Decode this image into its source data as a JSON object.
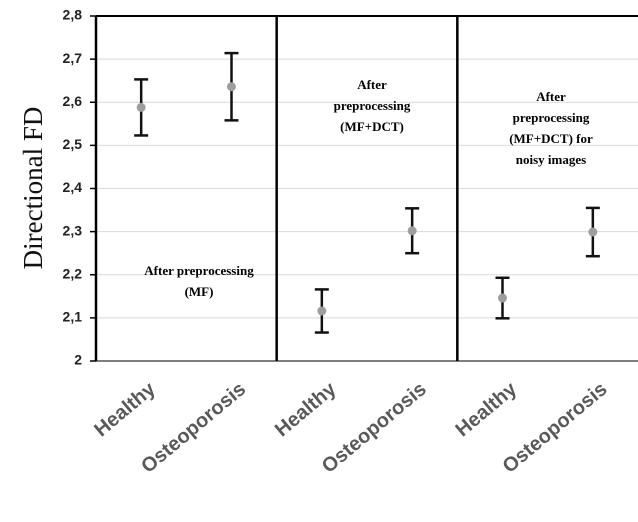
{
  "chart_data": {
    "type": "errorbar",
    "y_label": "Directional FD",
    "ylim": [
      2,
      2.8
    ],
    "yticks": [
      2,
      {
        "value": 2.1,
        "label": "2,1"
      },
      {
        "value": 2.2,
        "label": "2,2"
      },
      {
        "value": 2.3,
        "label": "2,3"
      },
      {
        "value": 2.4,
        "label": "2,4"
      },
      {
        "value": 2.5,
        "label": "2,5"
      },
      {
        "value": 2.6,
        "label": "2,6"
      },
      {
        "value": 2.7,
        "label": "2,7"
      },
      {
        "value": 2.8,
        "label": "2,8"
      }
    ],
    "grid": true,
    "color": "#9e9e9e",
    "error_color": "#111111",
    "panels": [
      {
        "annotation": [
          "After  preprocessing",
          "(MF)"
        ],
        "categories": [
          "Healthy",
          "Osteoporosis"
        ],
        "values": [
          2.588,
          2.636
        ],
        "errors": [
          0.065,
          0.078
        ]
      },
      {
        "annotation": [
          "After",
          "preprocessing",
          "(MF+DCT)"
        ],
        "categories": [
          "Healthy",
          "Osteoporosis"
        ],
        "values": [
          2.116,
          2.302
        ],
        "errors": [
          0.05,
          0.052
        ]
      },
      {
        "annotation": [
          "After",
          "preprocessing",
          "(MF+DCT) for",
          "noisy images"
        ],
        "categories": [
          "Healthy",
          "Osteoporosis"
        ],
        "values": [
          2.146,
          2.299
        ],
        "errors": [
          0.047,
          0.056
        ]
      }
    ]
  }
}
